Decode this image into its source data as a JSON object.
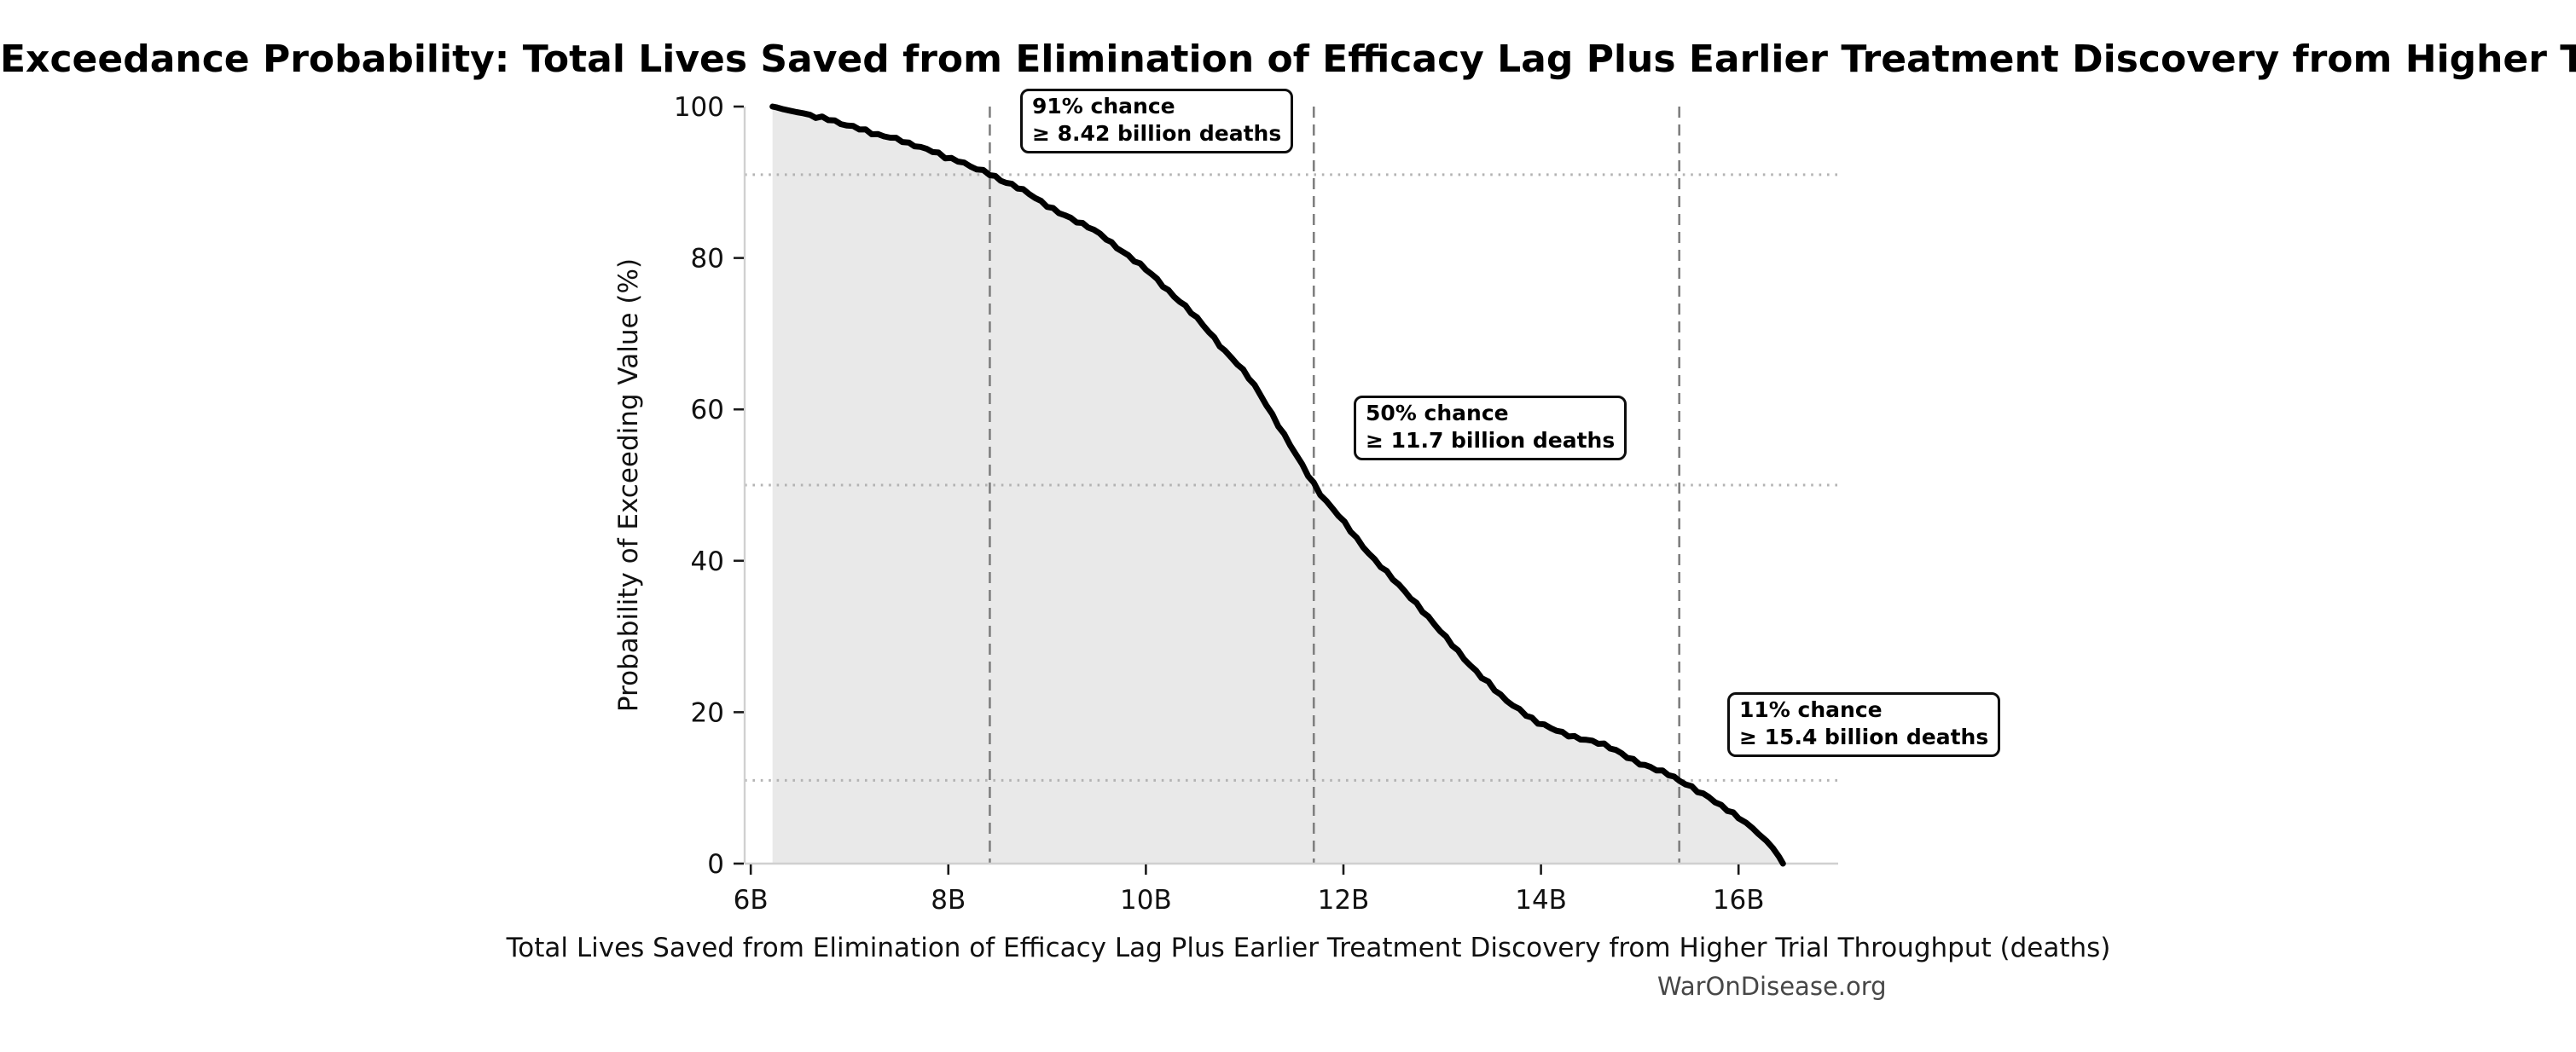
{
  "watermark": "WarOnDisease.org",
  "chart_data": {
    "type": "area",
    "title": "Exceedance Probability: Total Lives Saved from Elimination of Efficacy Lag Plus Earlier Treatment Discovery from Higher Trial Throughput",
    "xlabel": "Total Lives Saved from Elimination of Efficacy Lag Plus Earlier Treatment Discovery from Higher Trial Throughput (deaths)",
    "ylabel": "Probability of Exceeding Value (%)",
    "xlim_billions": [
      5.94,
      17.01
    ],
    "ylim_pct": [
      0,
      100
    ],
    "grid": "reference-lines-only",
    "legend": "none",
    "x_ticks": [
      {
        "value_billions": 6,
        "label": "6B"
      },
      {
        "value_billions": 8,
        "label": "8B"
      },
      {
        "value_billions": 10,
        "label": "10B"
      },
      {
        "value_billions": 12,
        "label": "12B"
      },
      {
        "value_billions": 14,
        "label": "14B"
      },
      {
        "value_billions": 16,
        "label": "16B"
      }
    ],
    "y_ticks": [
      {
        "value_pct": 0,
        "label": "0"
      },
      {
        "value_pct": 20,
        "label": "20"
      },
      {
        "value_pct": 40,
        "label": "40"
      },
      {
        "value_pct": 60,
        "label": "60"
      },
      {
        "value_pct": 80,
        "label": "80"
      },
      {
        "value_pct": 100,
        "label": "100"
      }
    ],
    "series": [
      {
        "name": "exceedance-curve",
        "x_billions": [
          6.22,
          6.4,
          6.6,
          6.85,
          7.1,
          7.35,
          7.6,
          7.9,
          8.16,
          8.42,
          8.7,
          9.0,
          9.3,
          9.6,
          10.0,
          10.4,
          10.8,
          11.1,
          11.4,
          11.7,
          11.95,
          12.2,
          12.5,
          12.8,
          13.1,
          13.4,
          13.65,
          13.85,
          14.1,
          14.4,
          14.7,
          15.0,
          15.4,
          15.7,
          16.0,
          16.2,
          16.35,
          16.45
        ],
        "probability_pct": [
          100,
          99.4,
          98.8,
          98.0,
          97.1,
          96.2,
          95.2,
          93.6,
          92.4,
          91.0,
          89.2,
          87.0,
          84.8,
          82.5,
          78.5,
          73.6,
          67.8,
          63.0,
          56.8,
          50.0,
          45.9,
          42.0,
          37.6,
          33.4,
          29.0,
          24.6,
          21.5,
          19.6,
          17.9,
          16.6,
          15.2,
          13.4,
          11.0,
          8.7,
          6.0,
          4.0,
          2.0,
          0.0
        ]
      }
    ],
    "annotations": [
      {
        "chance_label": "91% chance",
        "value_label": "≥ 8.42 billion deaths",
        "x_billions": 8.42,
        "probability_pct": 91
      },
      {
        "chance_label": "50% chance",
        "value_label": "≥ 11.7 billion deaths",
        "x_billions": 11.7,
        "probability_pct": 50
      },
      {
        "chance_label": "11% chance",
        "value_label": "≥ 15.4 billion deaths",
        "x_billions": 15.4,
        "probability_pct": 11
      }
    ],
    "colors": {
      "curve": "#000000",
      "fill": "#e9e9e9",
      "dashed_line": "#7f7f7f",
      "dotted_line": "#b3b3b3",
      "spine": "#d0d0d0",
      "tick": "#1a1a1a",
      "text": "#111111",
      "watermark": "#474747",
      "annotation_border": "#0d0d0d",
      "background": "#ffffff"
    }
  }
}
